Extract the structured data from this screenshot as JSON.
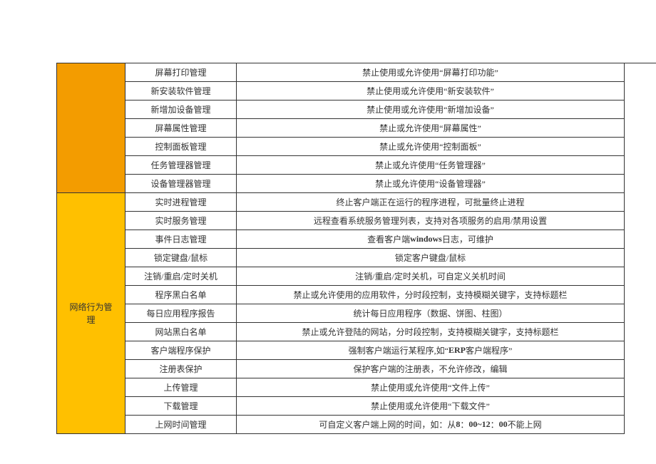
{
  "categories": [
    {
      "label": "",
      "class": "cat-orange",
      "rowCount": 7
    },
    {
      "label": "网络行为管\n理",
      "class": "cat-yellow",
      "rowCount": 13
    }
  ],
  "rows": [
    {
      "name": "屏幕打印管理",
      "desc": "禁止使用或允许使用“屏幕打印功能”"
    },
    {
      "name": "新安装软件管理",
      "desc": "禁止使用或允许使用“新安装软件”"
    },
    {
      "name": "新增加设备管理",
      "desc": "禁止使用或允许使用“新增加设备”"
    },
    {
      "name": "屏幕属性管理",
      "desc": "禁止或允许使用“屏幕属性”"
    },
    {
      "name": "控制面板管理",
      "desc": "禁止或允许使用“控制面板”"
    },
    {
      "name": "任务管理器管理",
      "desc": "禁止或允许使用“任务管理器”"
    },
    {
      "name": "设备管理器管理",
      "desc": "禁止或允许使用“设备管理器”"
    },
    {
      "name": "实时进程管理",
      "desc": "终止客户端正在运行的程序进程，可批量终止进程"
    },
    {
      "name": "实时服务管理",
      "desc": "远程查看系统服务管理列表，支持对各项服务的启用/禁用设置"
    },
    {
      "name": "事件日志管理",
      "desc_parts": [
        "查看客户端 ",
        {
          "text": "windows",
          "bold": true
        },
        " 日志，可维护"
      ]
    },
    {
      "name": "锁定键盘/鼠标",
      "desc": "锁定客户键盘/鼠标"
    },
    {
      "name": "注销/重启/定时关机",
      "desc": "注销/重启/定时关机，可自定义关机时间"
    },
    {
      "name": "程序黑白名单",
      "desc": "禁止或允许使用的应用软件，分时段控制，支持模糊关键字，支持标题栏"
    },
    {
      "name": "每日应用程序报告",
      "desc": "统计每日应用程序（数据、饼图、柱图）"
    },
    {
      "name": "网站黑白名单",
      "desc": "禁止或允许登陆的网站，分时段控制，支持模糊关键字，支持标题栏"
    },
    {
      "name": "客户端程序保护",
      "desc_parts": [
        "强制客户端运行某程序,如“ ",
        {
          "text": "ERP",
          "bold": true
        },
        " 客户端程序”"
      ]
    },
    {
      "name": "注册表保护",
      "desc": "保护客户端的注册表，不允许修改，编辑"
    },
    {
      "name": "上传管理",
      "desc": "禁止使用或允许使用“文件上传”"
    },
    {
      "name": "下载管理",
      "desc": "禁止使用或允许使用“下载文件”"
    },
    {
      "name": "上网时间管理",
      "desc_parts": [
        "可自定义客户端上网的时间，如：从 ",
        {
          "text": "8",
          "bold": true
        },
        "：",
        {
          "text": "00~12",
          "bold": true
        },
        "：",
        {
          "text": "00",
          "bold": true
        },
        " 不能上网"
      ]
    }
  ],
  "colors": {
    "orange": "#f39c00",
    "yellow": "#ffc000",
    "border": "#333333",
    "background": "#ffffff",
    "text": "#333333"
  }
}
